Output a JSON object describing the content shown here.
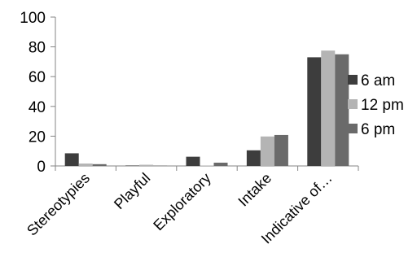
{
  "chart_data": {
    "type": "bar",
    "categories": [
      "Stereotypies",
      "Playful",
      "Exploratory",
      "Intake",
      "Indicative of…"
    ],
    "series": [
      {
        "name": "6 am",
        "values": [
          8.5,
          0.3,
          6.2,
          10.5,
          73
        ],
        "color": "#3d3d3d"
      },
      {
        "name": "12 pm",
        "values": [
          1.6,
          0.8,
          0.3,
          19.8,
          77.5
        ],
        "color": "#b4b4b4"
      },
      {
        "name": "6 pm",
        "values": [
          1.2,
          0.2,
          2.2,
          20.8,
          75
        ],
        "color": "#6a6a6a"
      }
    ],
    "yticks": [
      0,
      20,
      40,
      60,
      80,
      100
    ],
    "ylim": [
      0,
      100
    ],
    "grid": false,
    "legend": "right"
  }
}
